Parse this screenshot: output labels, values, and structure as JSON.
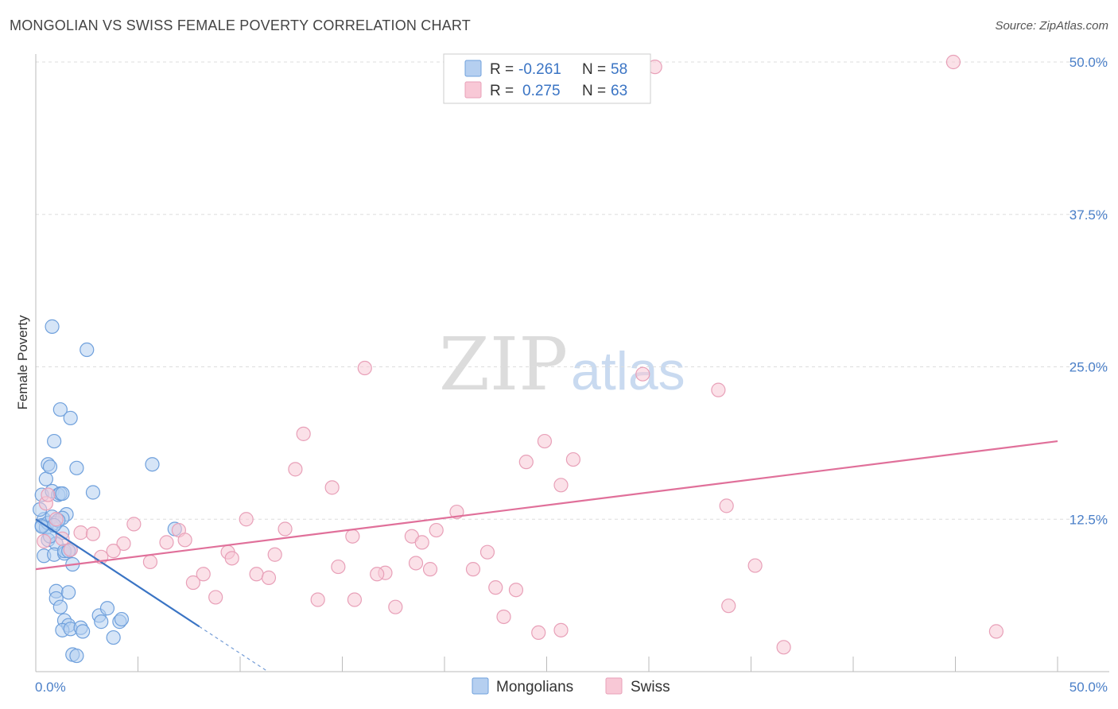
{
  "title": "MONGOLIAN VS SWISS FEMALE POVERTY CORRELATION CHART",
  "source": "Source: ZipAtlas.com",
  "chart_data": {
    "type": "scatter",
    "title": "MONGOLIAN VS SWISS FEMALE POVERTY CORRELATION CHART",
    "xlabel": "",
    "ylabel": "Female Poverty",
    "xlim": [
      0,
      50
    ],
    "ylim": [
      0,
      50
    ],
    "x_tick_labels": [
      "0.0%",
      "50.0%"
    ],
    "y_ticks": [
      12.5,
      25.0,
      37.5,
      50.0
    ],
    "y_tick_labels": [
      "12.5%",
      "25.0%",
      "37.5%",
      "50.0%"
    ],
    "watermark": [
      "ZIP",
      "atlas"
    ],
    "legend": {
      "rows": [
        {
          "r_label": "R =",
          "r_value": "-0.261",
          "n_label": "N =",
          "n_value": "58"
        },
        {
          "r_label": "R =",
          "r_value": "0.275",
          "n_label": "N =",
          "n_value": "63"
        }
      ]
    },
    "series": [
      {
        "name": "Mongolians",
        "color": "#6fa0dc",
        "fill": "#b5cff0",
        "line_color": "#3a74c4",
        "trend": {
          "x0": 0,
          "y0": 12.5,
          "x1": 8.0,
          "y1": 3.7,
          "dash_to_x": 11.3
        },
        "points": [
          [
            0.3,
            14.5
          ],
          [
            0.5,
            15.8
          ],
          [
            0.6,
            17.0
          ],
          [
            0.7,
            16.8
          ],
          [
            0.9,
            18.9
          ],
          [
            0.8,
            14.8
          ],
          [
            1.1,
            14.5
          ],
          [
            1.2,
            14.6
          ],
          [
            0.4,
            12.5
          ],
          [
            0.3,
            12.0
          ],
          [
            0.5,
            11.8
          ],
          [
            0.6,
            12.2
          ],
          [
            0.8,
            12.7
          ],
          [
            1.0,
            12.2
          ],
          [
            1.3,
            11.4
          ],
          [
            1.5,
            12.9
          ],
          [
            0.6,
            10.8
          ],
          [
            1.0,
            10.5
          ],
          [
            0.4,
            9.5
          ],
          [
            0.9,
            9.6
          ],
          [
            1.4,
            9.7
          ],
          [
            1.7,
            10.0
          ],
          [
            1.3,
            12.6
          ],
          [
            1.8,
            8.8
          ],
          [
            2.0,
            16.7
          ],
          [
            2.8,
            14.7
          ],
          [
            0.8,
            28.3
          ],
          [
            2.5,
            26.4
          ],
          [
            1.2,
            21.5
          ],
          [
            1.7,
            20.8
          ],
          [
            1.0,
            6.6
          ],
          [
            1.6,
            6.5
          ],
          [
            1.0,
            6.0
          ],
          [
            1.2,
            5.3
          ],
          [
            1.4,
            4.2
          ],
          [
            1.6,
            3.8
          ],
          [
            1.3,
            3.4
          ],
          [
            1.7,
            3.5
          ],
          [
            2.2,
            3.6
          ],
          [
            2.3,
            3.3
          ],
          [
            3.1,
            4.6
          ],
          [
            3.2,
            4.1
          ],
          [
            3.5,
            5.2
          ],
          [
            4.1,
            4.1
          ],
          [
            4.2,
            4.3
          ],
          [
            3.8,
            2.8
          ],
          [
            1.8,
            1.4
          ],
          [
            2.0,
            1.3
          ],
          [
            5.7,
            17.0
          ],
          [
            6.8,
            11.7
          ],
          [
            1.3,
            14.6
          ],
          [
            1.4,
            9.9
          ],
          [
            1.6,
            9.9
          ],
          [
            0.2,
            13.3
          ],
          [
            0.7,
            11.1
          ],
          [
            0.3,
            11.9
          ],
          [
            1.1,
            12.4
          ],
          [
            0.9,
            12.0
          ]
        ]
      },
      {
        "name": "Swiss",
        "color": "#e8a0b8",
        "fill": "#f8c8d6",
        "line_color": "#e0709a",
        "trend": {
          "x0": 0,
          "y0": 8.4,
          "x1": 50,
          "y1": 18.9
        },
        "points": [
          [
            30.3,
            49.6
          ],
          [
            44.9,
            50.0
          ],
          [
            16.1,
            24.9
          ],
          [
            29.7,
            24.4
          ],
          [
            33.4,
            23.1
          ],
          [
            13.1,
            19.5
          ],
          [
            24.9,
            18.9
          ],
          [
            24.0,
            17.2
          ],
          [
            26.3,
            17.4
          ],
          [
            12.7,
            16.6
          ],
          [
            14.5,
            15.1
          ],
          [
            25.7,
            15.3
          ],
          [
            20.6,
            13.1
          ],
          [
            33.8,
            13.6
          ],
          [
            0.5,
            13.8
          ],
          [
            1.0,
            12.5
          ],
          [
            4.8,
            12.1
          ],
          [
            10.3,
            12.5
          ],
          [
            7.0,
            11.6
          ],
          [
            12.2,
            11.7
          ],
          [
            2.2,
            11.4
          ],
          [
            2.8,
            11.3
          ],
          [
            6.4,
            10.6
          ],
          [
            7.3,
            10.8
          ],
          [
            4.3,
            10.5
          ],
          [
            15.5,
            11.1
          ],
          [
            18.4,
            11.1
          ],
          [
            19.6,
            11.6
          ],
          [
            18.9,
            10.6
          ],
          [
            1.3,
            10.9
          ],
          [
            1.7,
            10.0
          ],
          [
            3.8,
            9.9
          ],
          [
            5.6,
            9.0
          ],
          [
            9.4,
            9.8
          ],
          [
            9.6,
            9.3
          ],
          [
            11.7,
            9.6
          ],
          [
            22.1,
            9.8
          ],
          [
            3.2,
            9.4
          ],
          [
            14.8,
            8.6
          ],
          [
            17.1,
            8.1
          ],
          [
            18.6,
            8.9
          ],
          [
            19.3,
            8.4
          ],
          [
            21.4,
            8.4
          ],
          [
            35.2,
            8.7
          ],
          [
            8.2,
            8.0
          ],
          [
            10.8,
            8.0
          ],
          [
            11.4,
            7.7
          ],
          [
            16.7,
            8.0
          ],
          [
            7.7,
            7.3
          ],
          [
            22.5,
            6.9
          ],
          [
            23.5,
            6.7
          ],
          [
            8.8,
            6.1
          ],
          [
            13.8,
            5.9
          ],
          [
            15.6,
            5.9
          ],
          [
            17.6,
            5.3
          ],
          [
            33.9,
            5.4
          ],
          [
            22.9,
            4.5
          ],
          [
            0.4,
            10.7
          ],
          [
            24.6,
            3.2
          ],
          [
            25.7,
            3.4
          ],
          [
            36.6,
            2.0
          ],
          [
            47.0,
            3.3
          ],
          [
            0.6,
            14.5
          ]
        ]
      }
    ]
  },
  "bottom_legend": [
    "Mongolians",
    "Swiss"
  ]
}
